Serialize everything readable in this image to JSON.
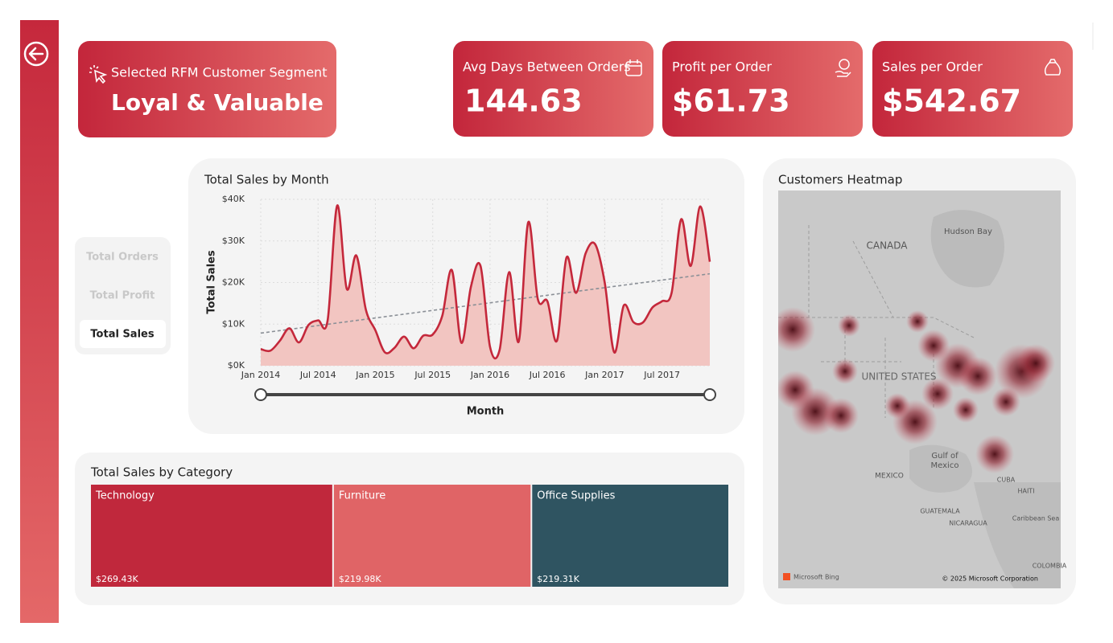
{
  "segment_card": {
    "label": "Selected RFM Customer Segment",
    "value": "Loyal & Valuable"
  },
  "kpi_cards": [
    {
      "label": "Avg Days Between Orders",
      "value": "144.63"
    },
    {
      "label": "Profit per Order",
      "value": "$61.73"
    },
    {
      "label": "Sales per Order",
      "value": "$542.67"
    }
  ],
  "measure_slicer": {
    "options": [
      "Total Orders",
      "Total Profit",
      "Total Sales"
    ],
    "selected": 2
  },
  "chart_data": [
    {
      "type": "line",
      "title": "Total Sales by Month",
      "x_label": "Month",
      "y_label": "Total Sales",
      "categories": [
        "Jan 2014",
        null,
        null,
        null,
        null,
        null,
        "Jul 2014",
        null,
        null,
        null,
        null,
        null,
        "Jan 2015",
        null,
        null,
        null,
        null,
        null,
        "Jul 2015",
        null,
        null,
        null,
        null,
        null,
        "Jan 2016",
        null,
        null,
        null,
        null,
        null,
        "Jul 2016",
        null,
        null,
        null,
        null,
        null,
        "Jan 2017",
        null,
        null,
        null,
        null,
        null,
        "Jul 2017",
        null,
        null,
        null,
        null,
        null
      ],
      "values": [
        4000,
        3600,
        6000,
        9000,
        5600,
        9800,
        10900,
        10900,
        38500,
        18500,
        26500,
        13500,
        8500,
        3200,
        4300,
        7000,
        4200,
        7200,
        7500,
        12000,
        23000,
        5500,
        19000,
        24000,
        4500,
        3800,
        22500,
        5800,
        34500,
        16000,
        15500,
        6000,
        26000,
        17500,
        27000,
        29200,
        20000,
        3200,
        14500,
        10500,
        10400,
        14000,
        15500,
        17500,
        35200,
        24000,
        38300,
        25000
      ],
      "color": "#c4283b",
      "area_color": "#f2c5c1",
      "trendline": true,
      "ylim": [
        0,
        40000
      ],
      "yticks": [
        {
          "value": 0,
          "label": "$0K"
        },
        {
          "value": 10000,
          "label": "$10K"
        },
        {
          "value": 20000,
          "label": "$20K"
        },
        {
          "value": 30000,
          "label": "$30K"
        },
        {
          "value": 40000,
          "label": "$40K"
        }
      ],
      "grid": true
    },
    {
      "type": "treemap",
      "title": "Total Sales by Category",
      "categories": [
        "Technology",
        "Furniture",
        "Office Supplies"
      ],
      "values": [
        269430,
        219980,
        219310
      ],
      "value_labels": [
        "$269.43K",
        "$219.98K",
        "$219.31K"
      ],
      "colors": [
        "#c0283c",
        "#e06466",
        "#2f5461"
      ]
    }
  ],
  "map": {
    "title": "Customers Heatmap",
    "labels": [
      "CANADA",
      "Hudson Bay",
      "UNITED STATES",
      "Gulf of",
      "Mexico",
      "MEXICO",
      "CUBA",
      "HAITI",
      "GUATEMALA",
      "NICARAGUA",
      "Caribbean Sea",
      "COLOMBIA"
    ],
    "attribution": [
      "Microsoft Bing",
      "© 2025 Microsoft Corporation"
    ]
  }
}
